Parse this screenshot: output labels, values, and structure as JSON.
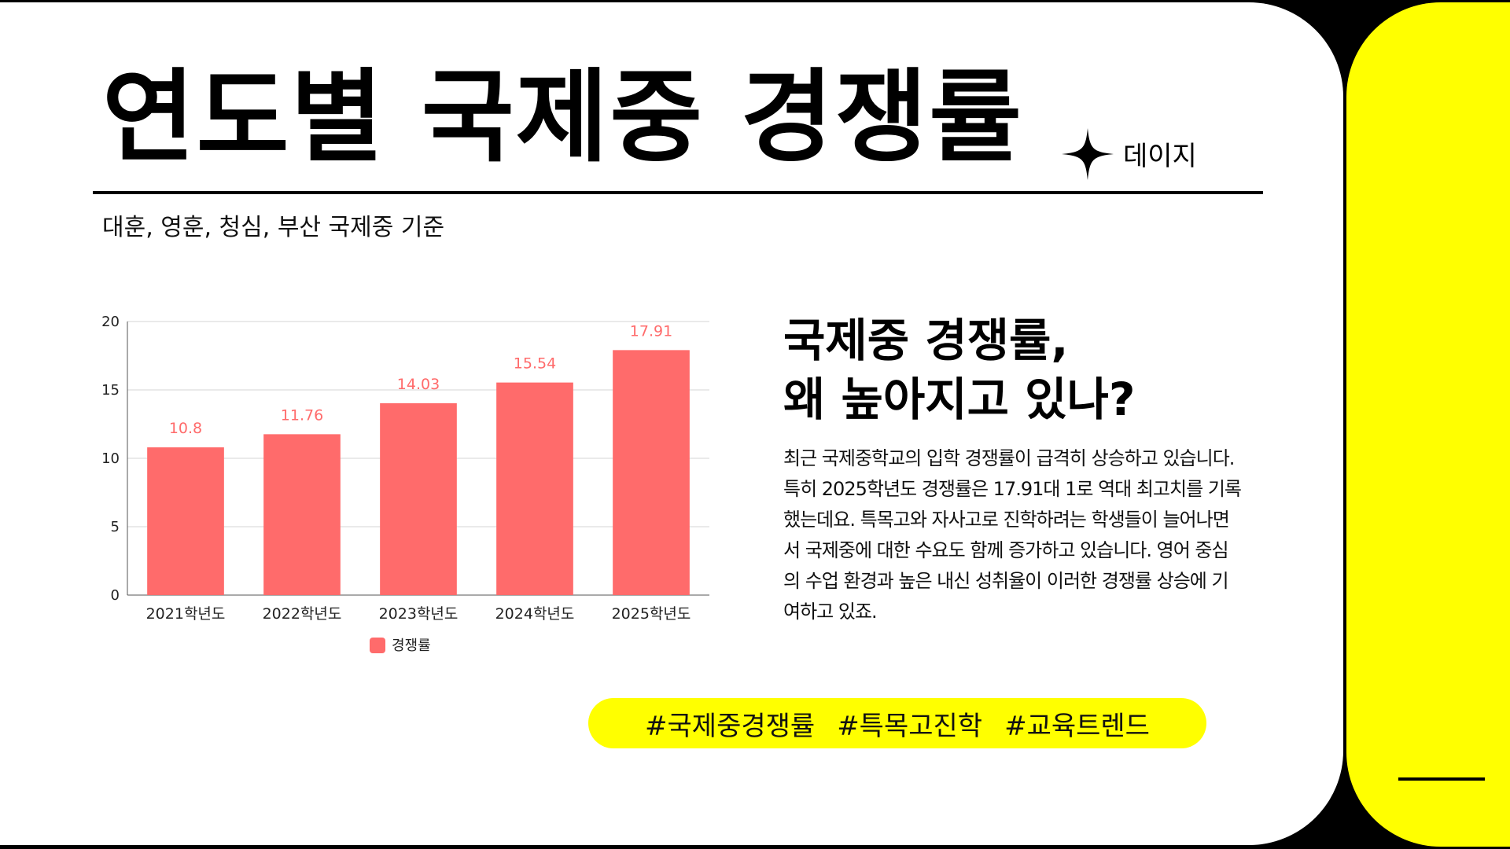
{
  "header": {
    "title": "연도별 국제중 경쟁률",
    "brand": "데이지",
    "subtitle": "대훈, 영훈, 청심, 부산 국제중 기준"
  },
  "chart_data": {
    "type": "bar",
    "categories": [
      "2021학년도",
      "2022학년도",
      "2023학년도",
      "2024학년도",
      "2025학년도"
    ],
    "series": [
      {
        "name": "경쟁률",
        "values": [
          10.8,
          11.76,
          14.03,
          15.54,
          17.91
        ],
        "color": "#ff6b6b"
      }
    ],
    "data_labels": [
      "10.8",
      "11.76",
      "14.03",
      "15.54",
      "17.91"
    ],
    "yticks": [
      0,
      5,
      10,
      15,
      20
    ],
    "ylim": [
      0,
      20
    ],
    "grid": true,
    "legend": "bottom"
  },
  "article": {
    "heading": [
      "국제중 경쟁률,",
      "왜 높아지고 있나?"
    ],
    "body": [
      "최근 국제중학교의 입학 경쟁률이 급격히 상승하고 있습니다.",
      "특히 2025학년도 경쟁률은 17.91대 1로 역대 최고치를 기록",
      "했는데요. 특목고와 자사고로 진학하려는 학생들이 늘어나면",
      "서 국제중에 대한 수요도 함께 증가하고 있습니다. 영어 중심",
      "의 수업 환경과 높은 내신 성취율이 이러한 경쟁률 상승에 기",
      "여하고 있죠."
    ]
  },
  "tags": [
    "#국제중경쟁률",
    "#특목고진학",
    "#교육트렌드"
  ],
  "colors": {
    "accent_yellow": "#ffff00",
    "bar": "#ff6b6b",
    "background": "#ffffff"
  },
  "icons": {
    "sparkle": "sparkle-icon"
  }
}
